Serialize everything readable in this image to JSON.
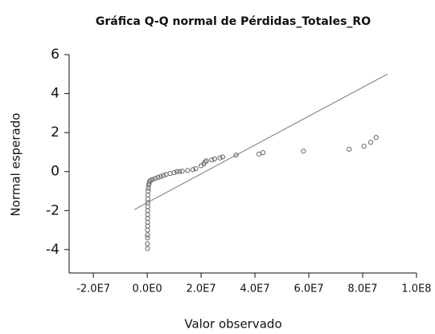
{
  "chart_data": {
    "type": "scatter",
    "title": "Gráfica Q-Q normal de Pérdidas_Totales_RO",
    "xlabel": "Valor observado",
    "ylabel": "Normal esperado",
    "x": [
      100000,
      100000,
      100000,
      100000,
      100000,
      150000,
      150000,
      150000,
      150000,
      150000,
      200000,
      200000,
      200000,
      250000,
      300000,
      400000,
      500000,
      700000,
      900000,
      1300000,
      2000000,
      3000000,
      4000000,
      5000000,
      6000000,
      7000000,
      8500000,
      10000000,
      11000000,
      12000000,
      13000000,
      15000000,
      17000000,
      18000000,
      20000000,
      21000000,
      21500000,
      22000000,
      24000000,
      25000000,
      27000000,
      28000000,
      33000000,
      41500000,
      43000000,
      58000000,
      75000000,
      80500000,
      83000000,
      85000000
    ],
    "values": [
      -3.95,
      -3.7,
      -3.4,
      -3.25,
      -3.0,
      -2.8,
      -2.6,
      -2.4,
      -2.2,
      -2.0,
      -1.8,
      -1.6,
      -1.4,
      -1.2,
      -1.0,
      -0.85,
      -0.7,
      -0.6,
      -0.5,
      -0.45,
      -0.4,
      -0.35,
      -0.3,
      -0.25,
      -0.2,
      -0.15,
      -0.1,
      -0.05,
      0,
      0,
      0.02,
      0.06,
      0.1,
      0.15,
      0.3,
      0.4,
      0.5,
      0.55,
      0.6,
      0.65,
      0.7,
      0.75,
      0.85,
      0.9,
      0.97,
      1.05,
      1.15,
      1.3,
      1.5,
      1.75
    ],
    "color": "#666666",
    "reference_line": {
      "x": [
        -4800000,
        89200000
      ],
      "y": [
        -1.95,
        5.0
      ],
      "color": "#777777"
    },
    "xlim": [
      -29000000,
      100000000
    ],
    "xticks": [
      {
        "value": -20000000,
        "label": "-2.0E7"
      },
      {
        "value": 0,
        "label": "0.0E0"
      },
      {
        "value": 20000000,
        "label": "2.0E7"
      },
      {
        "value": 40000000,
        "label": "4.0E7"
      },
      {
        "value": 60000000,
        "label": "6.0E7"
      },
      {
        "value": 80000000,
        "label": "8.0E7"
      },
      {
        "value": 100000000,
        "label": "1.0E8"
      }
    ],
    "ylim": [
      -5.2,
      6
    ],
    "yticks": [
      6,
      4,
      2,
      0,
      -2,
      -4
    ]
  }
}
